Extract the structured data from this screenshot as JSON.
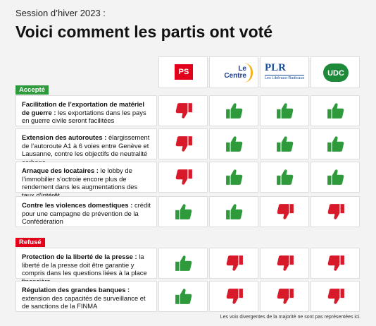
{
  "header": {
    "subtitle": "Session d’hiver 2023 :",
    "title": "Voici comment les partis ont voté"
  },
  "parties": [
    {
      "name": "PS"
    },
    {
      "name": "Le Centre"
    },
    {
      "name": "PLR",
      "tagline": "Les Libéraux-Radicaux"
    },
    {
      "name": "UDC"
    }
  ],
  "sections": [
    {
      "label": "Accepté",
      "rows": [
        {
          "bold": "Facilitation de l’exportation de matériel de guerre :",
          "text": " les exportations dans les pays en guerre civile seront facilitées",
          "votes": [
            false,
            true,
            true,
            true
          ]
        },
        {
          "bold": "Extension des autoroutes :",
          "text": " élargissement de l’autoroute A1 à 6 voies entre Genève et Lausanne, contre les objectifs de neutralité carbone",
          "votes": [
            false,
            true,
            true,
            true
          ]
        },
        {
          "bold": "Arnaque des locataires :",
          "text": " le lobby de l’immobilier s’octroie encore plus de rendement dans les augmentations des taux d’intérêt",
          "votes": [
            false,
            true,
            true,
            true
          ]
        },
        {
          "bold": "Contre les violences domestiques :",
          "text": " crédit pour une campagne de prévention de la Confédération",
          "votes": [
            true,
            true,
            false,
            false
          ]
        }
      ]
    },
    {
      "label": "Refusé",
      "rows": [
        {
          "bold": "Protection de la liberté de la presse :",
          "text": " la liberté de la presse doit être garantie y compris dans les questions liées à la place financière",
          "votes": [
            true,
            false,
            false,
            false
          ]
        },
        {
          "bold": "Régulation des grandes banques :",
          "text": " extension des capacités de surveillance et de sanctions de la FINMA",
          "votes": [
            true,
            false,
            false,
            false
          ]
        }
      ]
    }
  ],
  "footnote": "Les voix divergentes de la majorité ne sont pas représentées ici."
}
